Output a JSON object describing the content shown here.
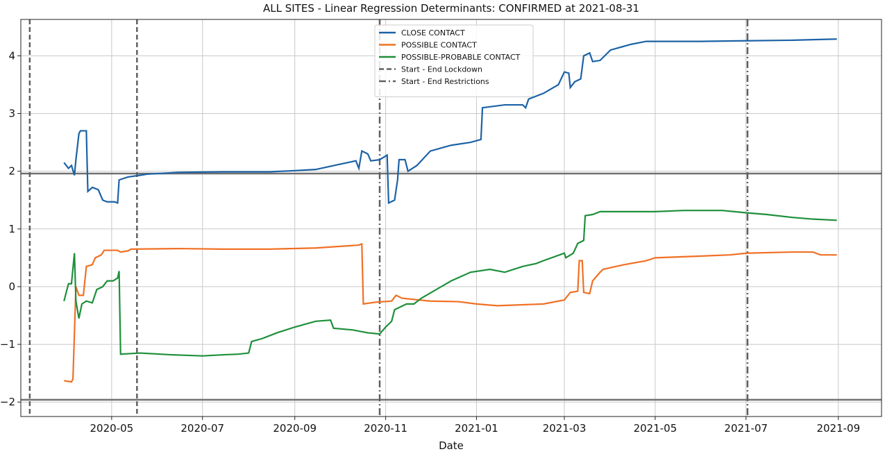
{
  "chart_data": {
    "type": "line",
    "title": "ALL SITES - Linear Regression Determinants: CONFIRMED at 2021-08-31",
    "x_label": "Date",
    "xlim": [
      "2020-03-01",
      "2021-09-30"
    ],
    "xticks": [
      {
        "value": "2020-05-01",
        "label": "2020-05"
      },
      {
        "value": "2020-07-01",
        "label": "2020-07"
      },
      {
        "value": "2020-09-01",
        "label": "2020-09"
      },
      {
        "value": "2020-11-01",
        "label": "2020-11"
      },
      {
        "value": "2021-01-01",
        "label": "2021-01"
      },
      {
        "value": "2021-03-01",
        "label": "2021-03"
      },
      {
        "value": "2021-05-01",
        "label": "2021-05"
      },
      {
        "value": "2021-07-01",
        "label": "2021-07"
      },
      {
        "value": "2021-09-01",
        "label": "2021-09"
      }
    ],
    "ylim": [
      -2.25,
      4.63
    ],
    "yticks": [
      {
        "value": -2,
        "label": "−2"
      },
      {
        "value": -1,
        "label": "−1"
      },
      0,
      1,
      2,
      3,
      4
    ],
    "grid": true,
    "legend": "upper center",
    "hlines": [
      1.96,
      -1.96
    ],
    "vlines": [
      {
        "name": "Start - End Lockdown",
        "style": "dashed",
        "dates": [
          "2020-03-07",
          "2020-05-18"
        ]
      },
      {
        "name": "Start - End Restrictions",
        "style": "dashdot",
        "dates": [
          "2020-10-28",
          "2021-07-02"
        ]
      }
    ],
    "series": [
      {
        "name": "CLOSE CONTACT",
        "color": "#1b62a5",
        "x": [
          "2020-03-30",
          "2020-04-02",
          "2020-04-04",
          "2020-04-06",
          "2020-04-07",
          "2020-04-09",
          "2020-04-10",
          "2020-04-14",
          "2020-04-15",
          "2020-04-18",
          "2020-04-22",
          "2020-04-25",
          "2020-04-28",
          "2020-05-03",
          "2020-05-05",
          "2020-05-06",
          "2020-05-12",
          "2020-05-20",
          "2020-05-25",
          "2020-06-15",
          "2020-07-15",
          "2020-08-15",
          "2020-09-01",
          "2020-09-15",
          "2020-10-01",
          "2020-10-12",
          "2020-10-14",
          "2020-10-16",
          "2020-10-20",
          "2020-10-22",
          "2020-10-28",
          "2020-11-02",
          "2020-11-03",
          "2020-11-07",
          "2020-11-09",
          "2020-11-10",
          "2020-11-14",
          "2020-11-16",
          "2020-11-22",
          "2020-12-01",
          "2020-12-15",
          "2020-12-28",
          "2021-01-04",
          "2021-01-05",
          "2021-01-20",
          "2021-02-01",
          "2021-02-03",
          "2021-02-05",
          "2021-02-15",
          "2021-02-25",
          "2021-03-01",
          "2021-03-04",
          "2021-03-05",
          "2021-03-08",
          "2021-03-12",
          "2021-03-14",
          "2021-03-18",
          "2021-03-20",
          "2021-03-25",
          "2021-04-01",
          "2021-04-15",
          "2021-04-25",
          "2021-05-15",
          "2021-06-01",
          "2021-07-01",
          "2021-08-01",
          "2021-08-31"
        ],
        "values": [
          2.15,
          2.05,
          2.1,
          1.93,
          2.2,
          2.65,
          2.7,
          2.7,
          1.65,
          1.72,
          1.68,
          1.5,
          1.47,
          1.47,
          1.45,
          1.85,
          1.9,
          1.93,
          1.95,
          1.98,
          1.99,
          1.99,
          2.01,
          2.03,
          2.12,
          2.18,
          2.05,
          2.35,
          2.3,
          2.18,
          2.2,
          2.28,
          1.45,
          1.5,
          1.85,
          2.2,
          2.2,
          2.0,
          2.1,
          2.35,
          2.45,
          2.5,
          2.55,
          3.1,
          3.15,
          3.15,
          3.1,
          3.25,
          3.35,
          3.5,
          3.72,
          3.7,
          3.45,
          3.55,
          3.6,
          4.0,
          4.05,
          3.9,
          3.92,
          4.1,
          4.2,
          4.25,
          4.25,
          4.25,
          4.26,
          4.27,
          4.29
        ]
      },
      {
        "name": "POSSIBLE CONTACT",
        "color": "#f07024",
        "x": [
          "2020-03-30",
          "2020-04-04",
          "2020-04-05",
          "2020-04-07",
          "2020-04-09",
          "2020-04-12",
          "2020-04-14",
          "2020-04-18",
          "2020-04-20",
          "2020-04-24",
          "2020-04-26",
          "2020-05-05",
          "2020-05-07",
          "2020-05-12",
          "2020-05-14",
          "2020-06-15",
          "2020-07-15",
          "2020-08-15",
          "2020-09-15",
          "2020-10-14",
          "2020-10-16",
          "2020-10-17",
          "2020-10-25",
          "2020-11-05",
          "2020-11-08",
          "2020-11-12",
          "2020-12-01",
          "2020-12-20",
          "2021-01-01",
          "2021-01-15",
          "2021-02-15",
          "2021-03-01",
          "2021-03-05",
          "2021-03-10",
          "2021-03-11",
          "2021-03-13",
          "2021-03-14",
          "2021-03-18",
          "2021-03-20",
          "2021-03-25",
          "2021-03-27",
          "2021-04-10",
          "2021-04-25",
          "2021-05-01",
          "2021-06-01",
          "2021-06-20",
          "2021-07-01",
          "2021-08-01",
          "2021-08-15",
          "2021-08-20",
          "2021-08-31"
        ],
        "values": [
          -1.63,
          -1.65,
          -1.6,
          0.0,
          -0.15,
          -0.15,
          0.35,
          0.38,
          0.5,
          0.55,
          0.63,
          0.63,
          0.6,
          0.62,
          0.65,
          0.66,
          0.65,
          0.65,
          0.67,
          0.72,
          0.74,
          -0.3,
          -0.27,
          -0.25,
          -0.15,
          -0.2,
          -0.25,
          -0.26,
          -0.3,
          -0.33,
          -0.3,
          -0.23,
          -0.1,
          -0.08,
          0.45,
          0.45,
          -0.1,
          -0.12,
          0.1,
          0.25,
          0.3,
          0.38,
          0.45,
          0.5,
          0.53,
          0.55,
          0.58,
          0.6,
          0.6,
          0.55,
          0.55
        ]
      },
      {
        "name": "POSSIBLE-PROBABLE CONTACT",
        "color": "#1e8f3a",
        "x": [
          "2020-03-30",
          "2020-04-02",
          "2020-04-04",
          "2020-04-06",
          "2020-04-07",
          "2020-04-09",
          "2020-04-11",
          "2020-04-14",
          "2020-04-18",
          "2020-04-21",
          "2020-04-25",
          "2020-04-28",
          "2020-05-02",
          "2020-05-05",
          "2020-05-06",
          "2020-05-07",
          "2020-05-20",
          "2020-06-10",
          "2020-07-01",
          "2020-07-15",
          "2020-07-25",
          "2020-08-01",
          "2020-08-03",
          "2020-08-10",
          "2020-08-20",
          "2020-09-01",
          "2020-09-15",
          "2020-09-25",
          "2020-09-27",
          "2020-10-10",
          "2020-10-20",
          "2020-10-28",
          "2020-11-01",
          "2020-11-05",
          "2020-11-07",
          "2020-11-15",
          "2020-11-20",
          "2020-11-25",
          "2020-12-05",
          "2020-12-15",
          "2020-12-28",
          "2021-01-10",
          "2021-01-20",
          "2021-02-01",
          "2021-02-10",
          "2021-02-15",
          "2021-03-01",
          "2021-03-02",
          "2021-03-07",
          "2021-03-10",
          "2021-03-14",
          "2021-03-15",
          "2021-03-20",
          "2021-03-25",
          "2021-04-15",
          "2021-05-01",
          "2021-05-20",
          "2021-06-15",
          "2021-07-01",
          "2021-07-15",
          "2021-08-01",
          "2021-08-15",
          "2021-08-31"
        ],
        "values": [
          -0.25,
          0.05,
          0.05,
          0.58,
          -0.25,
          -0.55,
          -0.3,
          -0.25,
          -0.28,
          -0.05,
          0.0,
          0.1,
          0.1,
          0.15,
          0.27,
          -1.17,
          -1.15,
          -1.18,
          -1.2,
          -1.18,
          -1.17,
          -1.15,
          -0.95,
          -0.9,
          -0.8,
          -0.7,
          -0.6,
          -0.58,
          -0.72,
          -0.75,
          -0.8,
          -0.82,
          -0.7,
          -0.6,
          -0.4,
          -0.3,
          -0.3,
          -0.2,
          -0.05,
          0.1,
          0.25,
          0.3,
          0.25,
          0.35,
          0.4,
          0.45,
          0.58,
          0.5,
          0.58,
          0.75,
          0.8,
          1.23,
          1.25,
          1.3,
          1.3,
          1.3,
          1.32,
          1.32,
          1.28,
          1.25,
          1.2,
          1.17,
          1.15
        ]
      }
    ]
  }
}
